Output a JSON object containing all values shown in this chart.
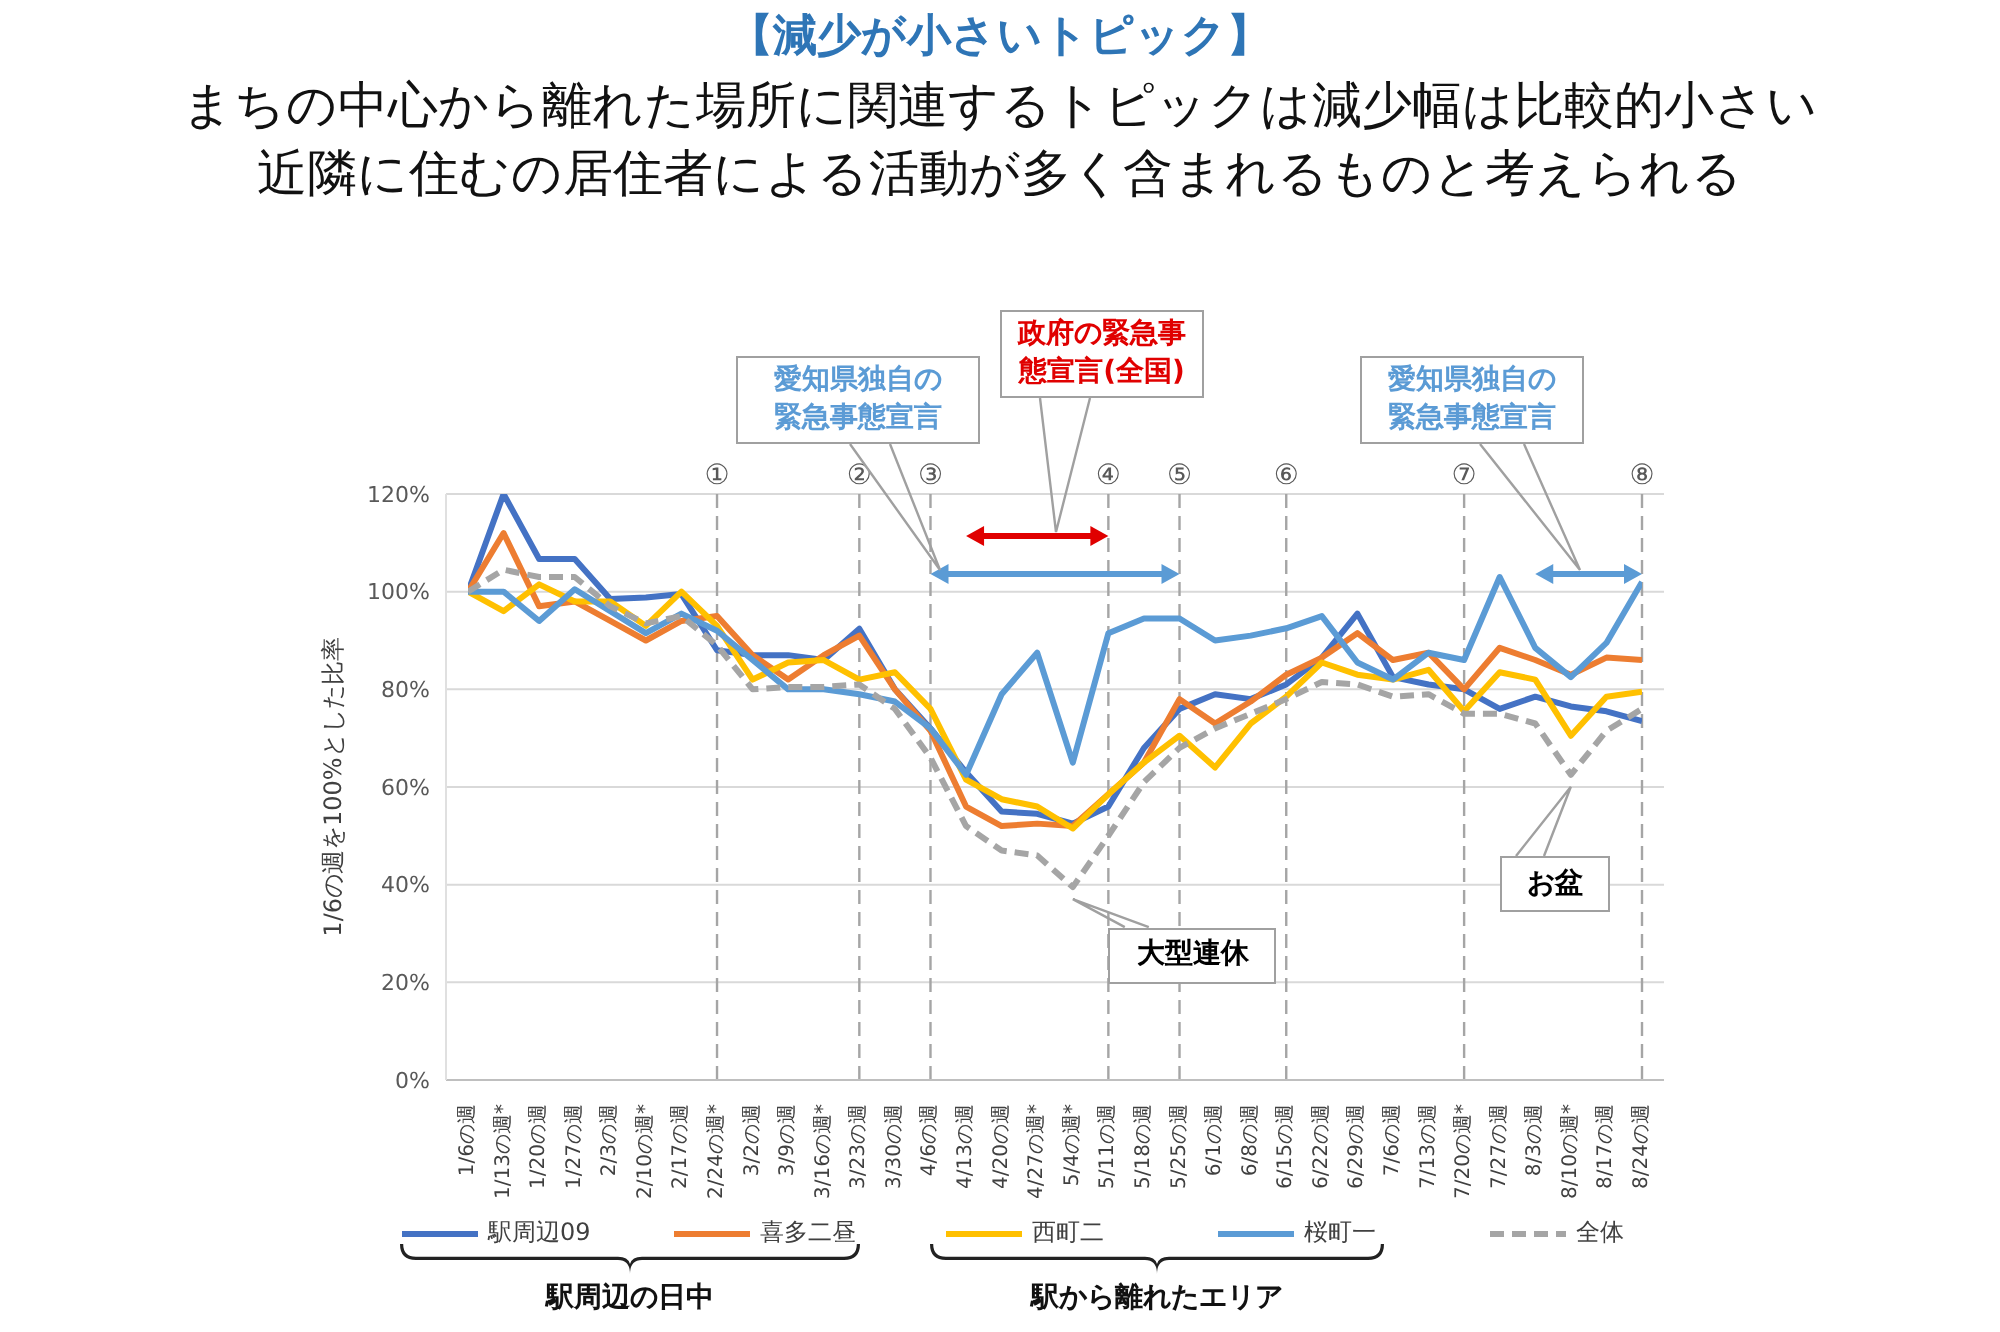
{
  "chart_data": {
    "type": "line",
    "title": "【減少が小さいトピック】",
    "subtitle": "まちの中心から離れた場所に関連するトピックは減少幅は比較的小さい近隣に住むの居住者による活動が多く含まれるものと考えられる",
    "ylabel": "1/6の週を100%とした比率",
    "categories": [
      "1/6の週",
      "1/13の週*",
      "1/20の週",
      "1/27の週",
      "2/3の週",
      "2/10の週*",
      "2/17の週",
      "2/24の週*",
      "3/2の週",
      "3/9の週",
      "3/16の週*",
      "3/23の週",
      "3/30の週",
      "4/6の週",
      "4/13の週",
      "4/20の週",
      "4/27の週*",
      "5/4の週*",
      "5/11の週",
      "5/18の週",
      "5/25の週",
      "6/1の週",
      "6/8の週",
      "6/15の週",
      "6/22の週",
      "6/29の週",
      "7/6の週",
      "7/13の週",
      "7/20の週*",
      "7/27の週",
      "8/3の週",
      "8/10の週*",
      "8/17の週",
      "8/24の週"
    ],
    "series": [
      {
        "name": "駅周辺09",
        "color": "#4472c4",
        "values": [
          100,
          120,
          106.7,
          106.7,
          98.5,
          98.8,
          99.5,
          88,
          87,
          87,
          86,
          92.4,
          80,
          72,
          63,
          55,
          54.5,
          52.5,
          56,
          68,
          76,
          79,
          78,
          81,
          86.5,
          95.5,
          82.5,
          81,
          80,
          76,
          78.5,
          76.5,
          75.5,
          73.5
        ]
      },
      {
        "name": "喜多二昼",
        "color": "#ed7d31",
        "values": [
          100,
          112,
          97,
          98,
          94,
          90,
          94,
          95,
          87,
          82,
          87,
          91,
          80,
          71.5,
          56,
          52,
          52.5,
          52,
          58.5,
          65,
          78,
          73,
          77.5,
          83,
          86.5,
          91.5,
          86,
          87.5,
          80,
          88.5,
          86,
          83,
          86.5,
          86
        ]
      },
      {
        "name": "西町二",
        "color": "#ffc000",
        "values": [
          100,
          96,
          101.5,
          98,
          98,
          93,
          100,
          93,
          82,
          85.5,
          86,
          82,
          83.5,
          76,
          61.5,
          57.5,
          56,
          51.5,
          58.5,
          65,
          70.5,
          64,
          73,
          78.5,
          85.5,
          83,
          82,
          84,
          75.5,
          83.5,
          82,
          70.5,
          78.5,
          79.5
        ]
      },
      {
        "name": "桜町一",
        "color": "#5b9bd5",
        "values": [
          100,
          100,
          94,
          100.5,
          96,
          91.5,
          95.5,
          92,
          86,
          80,
          80,
          79,
          77.5,
          72,
          62.5,
          79,
          87.5,
          65,
          91.5,
          94.5,
          94.5,
          90,
          91,
          92.5,
          95,
          85.5,
          82,
          87.5,
          86,
          103,
          88.5,
          82.5,
          89.5,
          102
        ]
      },
      {
        "name": "全体",
        "color": "#a5a5a5",
        "line_style": "dashed",
        "values": [
          100,
          104.5,
          103,
          103,
          97,
          93.5,
          95,
          89,
          80,
          80.5,
          80.5,
          81,
          76,
          66,
          52,
          47,
          46,
          39.5,
          50,
          61,
          68,
          72,
          75,
          78,
          81.5,
          81,
          78.5,
          79,
          75,
          75,
          73,
          62.5,
          71.5,
          76
        ]
      }
    ],
    "ylim": [
      0,
      120
    ],
    "yticks": [
      {
        "value": 0,
        "label": "0%"
      },
      {
        "value": 20,
        "label": "20%"
      },
      {
        "value": 40,
        "label": "40%"
      },
      {
        "value": 60,
        "label": "60%"
      },
      {
        "value": 80,
        "label": "80%"
      },
      {
        "value": 100,
        "label": "100%"
      },
      {
        "value": 120,
        "label": "120%"
      }
    ],
    "grid": "y",
    "legend": "bottom",
    "marker": "none",
    "ref_lines": [
      {
        "axis": "x",
        "value": "2/24の週*",
        "label": "①",
        "color": "#a5a5a5",
        "line_style": "dashed"
      },
      {
        "axis": "x",
        "value": "3/23の週",
        "label": "②",
        "color": "#a5a5a5",
        "line_style": "dashed"
      },
      {
        "axis": "x",
        "value": "4/6の週",
        "label": "③",
        "color": "#a5a5a5",
        "line_style": "dashed"
      },
      {
        "axis": "x",
        "value": "5/11の週",
        "label": "④",
        "color": "#a5a5a5",
        "line_style": "dashed"
      },
      {
        "axis": "x",
        "value": "5/25の週",
        "label": "⑤",
        "color": "#a5a5a5",
        "line_style": "dashed"
      },
      {
        "axis": "x",
        "value": "6/15の週",
        "label": "⑥",
        "color": "#a5a5a5",
        "line_style": "dashed"
      },
      {
        "axis": "x",
        "value": "7/20の週*",
        "label": "⑦",
        "color": "#a5a5a5",
        "line_style": "dashed"
      },
      {
        "axis": "x",
        "value": "8/24の週",
        "label": "⑧",
        "color": "#a5a5a5",
        "line_style": "dashed"
      }
    ],
    "annotations": [
      "愛知県独自の緊急事態宣言",
      "政府の緊急事態宣言(全国)",
      "愛知県独自の緊急事態宣言",
      {
        "text": "大型連休",
        "x": "5/4の週*",
        "y": 39.5
      },
      "お盆",
      "駅周辺の日中",
      "駅から離れたエリア"
    ]
  }
}
